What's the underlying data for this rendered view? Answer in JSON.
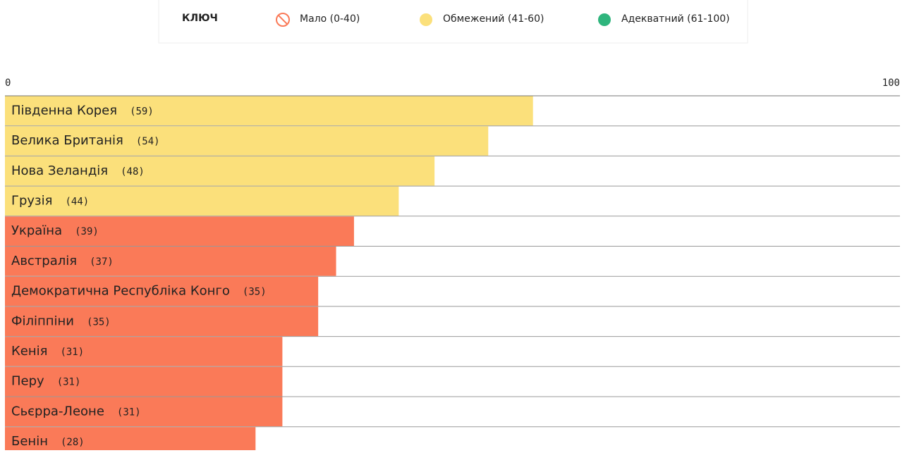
{
  "chart_data": {
    "type": "bar",
    "orientation": "horizontal",
    "legend": {
      "title": "КЛЮЧ",
      "entries": [
        {
          "name": "Мало (0-40)",
          "color": "#fa7a58",
          "marker": "prohibited"
        },
        {
          "name": "Обмежений (41-60)",
          "color": "#fbe07b",
          "marker": "dot"
        },
        {
          "name": "Адекватний (61-100)",
          "color": "#2fb57d",
          "marker": "dot"
        }
      ]
    },
    "categories": [
      "Південна Корея",
      "Велика Британія",
      "Нова Зеландія",
      "Грузія",
      "Україна",
      "Австралія",
      "Демократична Республіка Конго",
      "Філіппіни",
      "Кенія",
      "Перу",
      "Сьєрра-Леоне",
      "Бенін"
    ],
    "values": [
      59,
      54,
      48,
      44,
      39,
      37,
      35,
      35,
      31,
      31,
      31,
      28
    ],
    "value_labels": [
      "(59)",
      "(54)",
      "(48)",
      "(44)",
      "(39)",
      "(37)",
      "(35)",
      "(35)",
      "(31)",
      "(31)",
      "(31)",
      "(28)"
    ],
    "colors": [
      "#fbe07b",
      "#fbe07b",
      "#fbe07b",
      "#fbe07b",
      "#fa7a58",
      "#fa7a58",
      "#fa7a58",
      "#fa7a58",
      "#fa7a58",
      "#fa7a58",
      "#fa7a58",
      "#fa7a58"
    ],
    "xlim": [
      0,
      100
    ],
    "xticks": [
      0,
      100
    ]
  }
}
